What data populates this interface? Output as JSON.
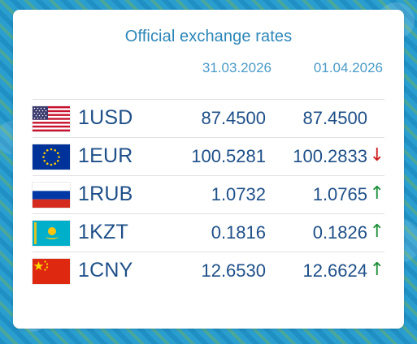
{
  "title": "Official exchange rates",
  "dates": [
    "31.03.2026",
    "01.04.2026"
  ],
  "colors": {
    "down_arrow": "#cc1d1d",
    "up_arrow": "#1c8f3a",
    "value_text": "#1e4f88"
  },
  "rows": [
    {
      "flag_icon": "usa-flag-icon",
      "code": "1USD",
      "rate_1": "87.4500",
      "rate_2": "87.4500",
      "trend": "",
      "trend_icon": ""
    },
    {
      "flag_icon": "eu-flag-icon",
      "code": "1EUR",
      "rate_1": "100.5281",
      "rate_2": "100.2833",
      "trend": "↓",
      "trend_icon": "arrow-down-icon"
    },
    {
      "flag_icon": "russia-flag-icon",
      "code": "1RUB",
      "rate_1": "1.0732",
      "rate_2": "1.0765",
      "trend": "↑",
      "trend_icon": "arrow-up-icon"
    },
    {
      "flag_icon": "kazakhstan-flag-icon",
      "code": "1KZT",
      "rate_1": "0.1816",
      "rate_2": "0.1826",
      "trend": "↑",
      "trend_icon": "arrow-up-icon"
    },
    {
      "flag_icon": "china-flag-icon",
      "code": "1CNY",
      "rate_1": "12.6530",
      "rate_2": "12.6624",
      "trend": "↑",
      "trend_icon": "arrow-up-icon"
    }
  ]
}
